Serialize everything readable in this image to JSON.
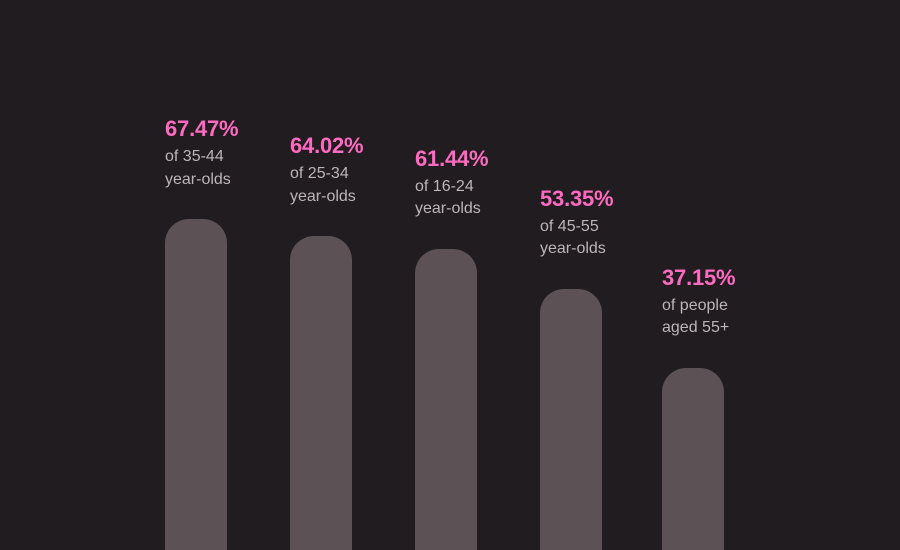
{
  "colors": {
    "background": "#201c1f",
    "bar": "#5c5256",
    "value_text": "#ff6ac1",
    "label_text": "#bdb5ba"
  },
  "chart_data": {
    "type": "bar",
    "title": "",
    "xlabel": "",
    "ylabel": "",
    "ylim": [
      0,
      100
    ],
    "categories": [
      {
        "value_label": "67.47%",
        "label_lines": [
          "of 35-44",
          "year-olds"
        ]
      },
      {
        "value_label": "64.02%",
        "label_lines": [
          "of 25-34",
          "year-olds"
        ]
      },
      {
        "value_label": "61.44%",
        "label_lines": [
          "of 16-24",
          "year-olds"
        ]
      },
      {
        "value_label": "53.35%",
        "label_lines": [
          "of 45-55",
          "year-olds"
        ]
      },
      {
        "value_label": "37.15%",
        "label_lines": [
          "of people",
          "aged 55+"
        ]
      }
    ],
    "values": [
      67.47,
      64.02,
      61.44,
      53.35,
      37.15
    ]
  }
}
